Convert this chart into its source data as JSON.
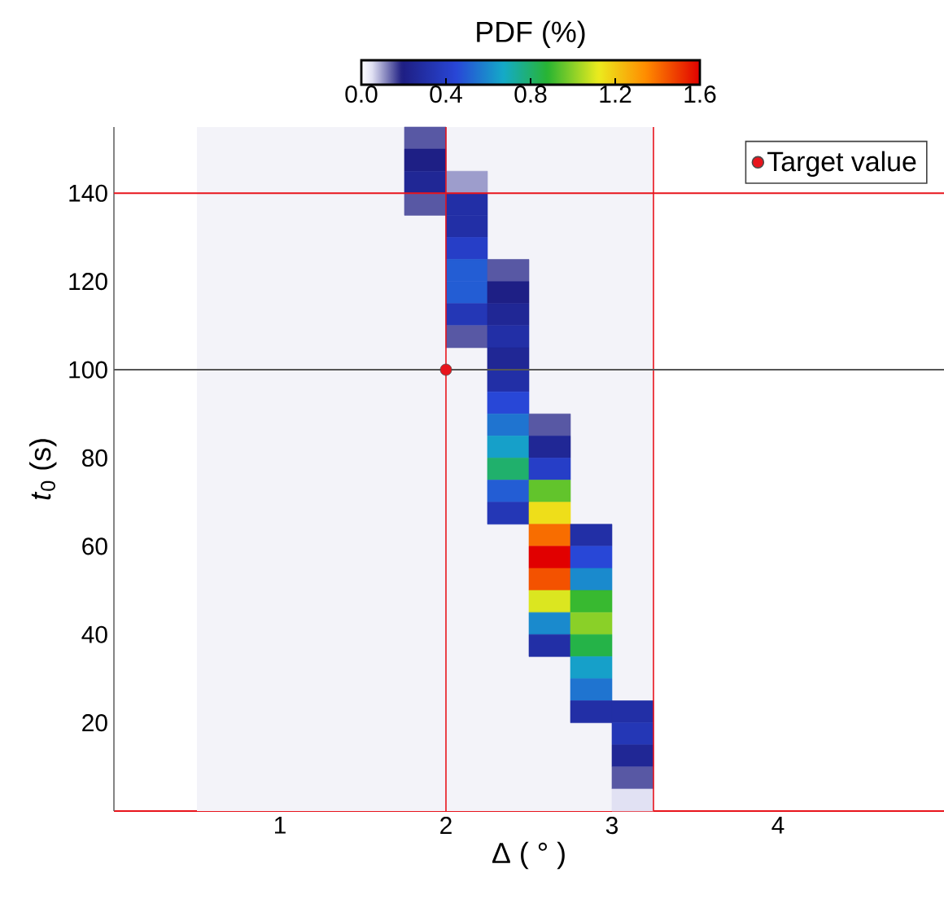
{
  "chart_data": {
    "type": "scatter",
    "xlabel": "Δ ( ° )",
    "ylabel": "*t*$_{0}$ (s)",
    "clabel": "PDF (%)",
    "xlim": [
      0,
      5
    ],
    "ylim": [
      0,
      155
    ],
    "xticks": [
      1,
      2,
      3,
      4
    ],
    "yticks": [
      20,
      40,
      60,
      80,
      100,
      120,
      140
    ],
    "clim": [
      0,
      1.6
    ],
    "cticks": [
      {
        "value": 0,
        "label": "0.0"
      },
      {
        "value": 0.4,
        "label": "0.4"
      },
      {
        "value": 0.8,
        "label": "0.8"
      },
      {
        "value": 1.2,
        "label": "1.2"
      },
      {
        "value": 1.6,
        "label": "1.6"
      }
    ],
    "series": [
      {
        "type": "scatter",
        "marker": "square",
        "x": [
          1.875,
          1.875,
          1.875,
          2.125,
          1.875,
          2.125,
          2.125,
          2.125,
          2.125,
          2.375,
          2.125,
          2.375,
          2.125,
          2.375,
          2.125,
          2.375,
          2.375,
          2.375,
          2.375,
          2.375,
          2.625,
          2.375,
          2.625,
          2.375,
          2.625,
          2.375,
          2.625,
          2.375,
          2.625,
          2.625,
          2.875,
          2.625,
          2.875,
          2.625,
          2.875,
          2.625,
          2.875,
          2.625,
          2.875,
          2.625,
          2.875,
          2.875,
          2.875,
          2.875,
          3.125,
          3.125,
          3.125,
          3.125,
          3.125
        ],
        "values": [
          152.5,
          147.5,
          142.5,
          142.5,
          137.5,
          137.5,
          132.5,
          127.5,
          122.5,
          122.5,
          117.5,
          117.5,
          112.5,
          112.5,
          107.5,
          107.5,
          102.5,
          97.5,
          92.5,
          87.5,
          87.5,
          82.5,
          82.5,
          77.5,
          77.5,
          72.5,
          72.5,
          67.5,
          67.5,
          62.5,
          62.5,
          57.5,
          57.5,
          52.5,
          52.5,
          47.5,
          47.5,
          42.5,
          42.5,
          37.5,
          37.5,
          32.5,
          27.5,
          22.5,
          22.5,
          17.5,
          12.5,
          7.5,
          2.5
        ],
        "colors": [
          "#5858a4",
          "#1e1f85",
          "#202795",
          "#9d9dcc",
          "#5858a4",
          "#222fa6",
          "#222fa6",
          "#263ec7",
          "#235dd4",
          "#5858a4",
          "#235dd4",
          "#1e1f85",
          "#2437b6",
          "#202795",
          "#5858a4",
          "#222fa6",
          "#202795",
          "#222fa6",
          "#2847d7",
          "#1f74d0",
          "#5858a4",
          "#16a0c9",
          "#202795",
          "#20b06c",
          "#263ec7",
          "#235dd4",
          "#62c42c",
          "#2437b6",
          "#eede1a",
          "#f86d00",
          "#222fa6",
          "#e10000",
          "#2847d7",
          "#f35200",
          "#1a8acd",
          "#dbe620",
          "#38b930",
          "#1a8acd",
          "#8ad028",
          "#222fa6",
          "#25b348",
          "#16a0c9",
          "#1f74d0",
          "#222fa6",
          "#222fa6",
          "#2437b6",
          "#202795",
          "#5858a4",
          "#e1e1f3"
        ],
        "cvalues": [
          0.15,
          0.2,
          0.25,
          0.1,
          0.15,
          0.3,
          0.3,
          0.4,
          0.5,
          0.15,
          0.5,
          0.2,
          0.35,
          0.25,
          0.15,
          0.3,
          0.25,
          0.3,
          0.45,
          0.55,
          0.15,
          0.65,
          0.25,
          0.8,
          0.4,
          0.5,
          0.95,
          0.35,
          1.15,
          1.4,
          0.3,
          1.6,
          0.45,
          1.45,
          0.6,
          1.1,
          0.9,
          0.6,
          1.0,
          0.3,
          0.85,
          0.65,
          0.55,
          0.3,
          0.3,
          0.35,
          0.25,
          0.15,
          0.05
        ]
      },
      {
        "name": "Target value",
        "type": "scatter",
        "marker": "circle",
        "color": "#e8141c",
        "x": [
          2
        ],
        "values": [
          100
        ]
      }
    ],
    "legend": "top right",
    "bands": [
      {
        "axis": "x",
        "from": 0.5,
        "to": 3.25,
        "color": "#f3f3f9"
      }
    ],
    "ref_lines": [
      {
        "axis": "x",
        "value": 2,
        "color": "#e8141c"
      },
      {
        "axis": "x",
        "value": 3.25,
        "color": "#e8141c"
      },
      {
        "axis": "y",
        "value": 140,
        "color": "#e8141c"
      },
      {
        "axis": "y",
        "value": 100,
        "color": "#555555"
      }
    ]
  }
}
